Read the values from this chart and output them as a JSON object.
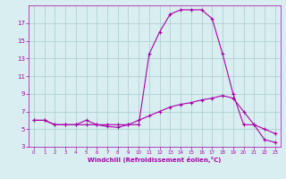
{
  "title": "",
  "xlabel": "Windchill (Refroidissement éolien,°C)",
  "background_color": "#d8eef0",
  "grid_color": "#aacccc",
  "line_color": "#aa00aa",
  "x": [
    0,
    1,
    2,
    3,
    4,
    5,
    6,
    7,
    8,
    9,
    10,
    11,
    12,
    13,
    14,
    15,
    16,
    17,
    18,
    19,
    20,
    21,
    22,
    23
  ],
  "y_upper": [
    6.0,
    6.0,
    5.5,
    5.5,
    5.5,
    6.0,
    5.5,
    5.5,
    5.5,
    5.5,
    5.5,
    13.5,
    16.0,
    18.0,
    18.5,
    18.5,
    18.5,
    17.5,
    13.5,
    9.0,
    5.5,
    5.5,
    5.0,
    4.5
  ],
  "y_lower": [
    6.0,
    6.0,
    5.5,
    5.5,
    5.5,
    5.5,
    5.5,
    5.3,
    5.2,
    5.5,
    6.0,
    6.5,
    7.0,
    7.5,
    7.8,
    8.0,
    8.3,
    8.5,
    8.8,
    8.5,
    7.0,
    5.5,
    3.8,
    3.5
  ],
  "ylim": [
    3,
    19
  ],
  "xlim": [
    -0.5,
    23.5
  ],
  "yticks": [
    3,
    5,
    7,
    9,
    11,
    13,
    15,
    17
  ],
  "xticks": [
    0,
    1,
    2,
    3,
    4,
    5,
    6,
    7,
    8,
    9,
    10,
    11,
    12,
    13,
    14,
    15,
    16,
    17,
    18,
    19,
    20,
    21,
    22,
    23
  ]
}
